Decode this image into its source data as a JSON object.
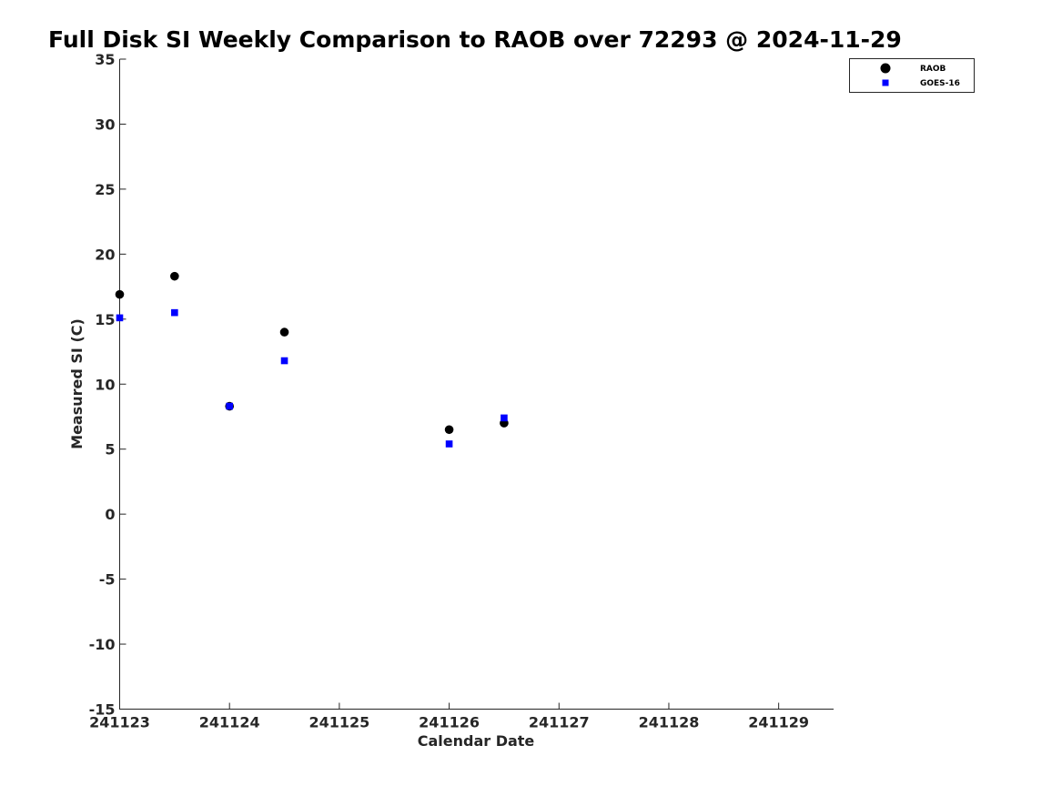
{
  "chart_data": {
    "type": "scatter",
    "title": "Full Disk SI Weekly Comparison to RAOB over 72293 @ 2024-11-29",
    "xlabel": "Calendar Date",
    "ylabel": "Measured SI (C)",
    "xlim": [
      0,
      6.5
    ],
    "ylim": [
      -15,
      35
    ],
    "x_ticks": [
      0,
      1,
      2,
      3,
      4,
      5,
      6
    ],
    "x_tick_labels": [
      "241123",
      "241124",
      "241125",
      "241126",
      "241127",
      "241128",
      "241129"
    ],
    "y_ticks": [
      -15,
      -10,
      -5,
      0,
      5,
      10,
      15,
      20,
      25,
      30,
      35
    ],
    "y_tick_labels": [
      "-15",
      "-10",
      "-5",
      "0",
      "5",
      "10",
      "15",
      "20",
      "25",
      "30",
      "35"
    ],
    "grid": false,
    "legend_position": "top-right",
    "series": [
      {
        "name": "RAOB",
        "marker": "circle",
        "color": "#000000",
        "x": [
          0,
          0.5,
          1,
          1.5,
          3,
          3.5
        ],
        "y": [
          16.9,
          18.3,
          8.3,
          14.0,
          6.5,
          7.0
        ]
      },
      {
        "name": "GOES-16",
        "marker": "square",
        "color": "#0000ff",
        "x": [
          0,
          0.5,
          1,
          1.5,
          3,
          3.5
        ],
        "y": [
          15.1,
          15.5,
          8.3,
          11.8,
          5.4,
          7.4
        ]
      }
    ]
  }
}
